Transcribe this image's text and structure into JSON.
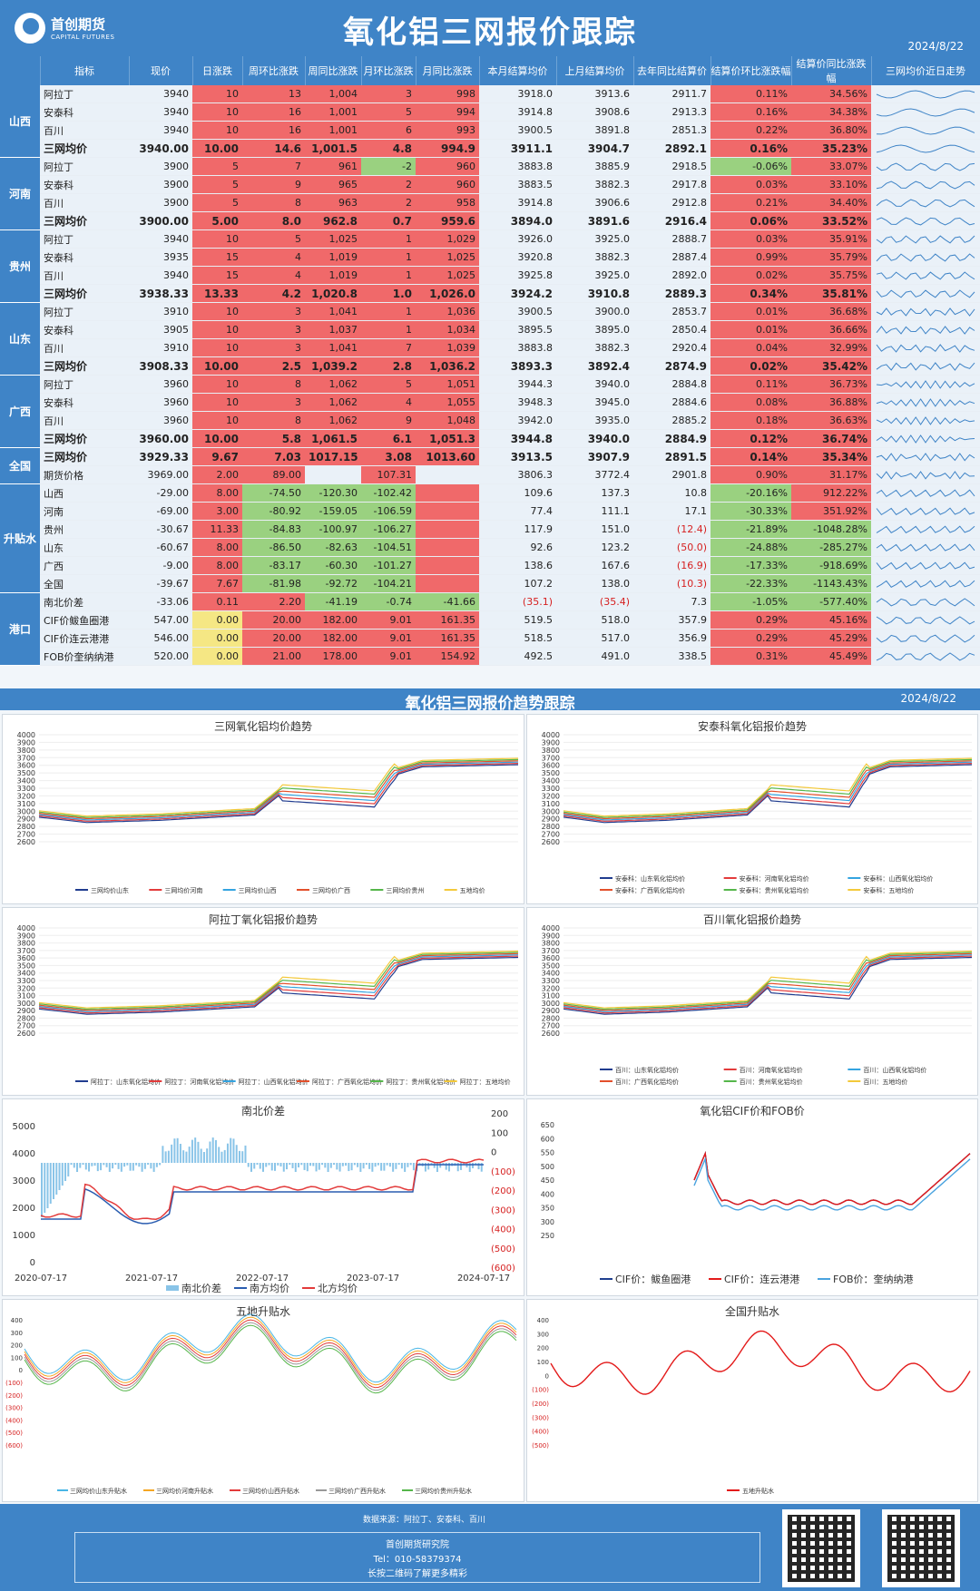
{
  "header": {
    "logo_cn": "首创期货",
    "logo_en": "CAPITAL FUTURES",
    "title": "氧化铝三网报价跟踪",
    "date": "2024/8/22"
  },
  "columns": [
    "指标",
    "现价",
    "日涨跌",
    "周环比涨跌",
    "周同比涨跌",
    "月环比涨跌",
    "月同比涨跌",
    "本月结算均价",
    "上月结算均价",
    "去年同比结算价",
    "结算价环比涨跌幅",
    "结算价同比涨跌幅",
    "三网均价近日走势"
  ],
  "groups": [
    {
      "name": "山西",
      "rows": [
        [
          "阿拉丁",
          "3940",
          "10",
          "13",
          "1,004",
          "3",
          "998",
          "3918.0",
          "3913.6",
          "2911.7",
          "0.11%",
          "34.56%"
        ],
        [
          "安泰科",
          "3940",
          "10",
          "16",
          "1,001",
          "5",
          "994",
          "3914.8",
          "3908.6",
          "2913.3",
          "0.16%",
          "34.38%"
        ],
        [
          "百川",
          "3940",
          "10",
          "16",
          "1,001",
          "6",
          "993",
          "3900.5",
          "3891.8",
          "2851.3",
          "0.22%",
          "36.80%"
        ],
        [
          "三网均价",
          "3940.00",
          "10.00",
          "14.6",
          "1,001.5",
          "4.8",
          "994.9",
          "3911.1",
          "3904.7",
          "2892.1",
          "0.16%",
          "35.23%"
        ]
      ]
    },
    {
      "name": "河南",
      "rows": [
        [
          "阿拉丁",
          "3900",
          "5",
          "7",
          "961",
          "-2",
          "960",
          "3883.8",
          "3885.9",
          "2918.5",
          "-0.06%",
          "33.07%"
        ],
        [
          "安泰科",
          "3900",
          "5",
          "9",
          "965",
          "2",
          "960",
          "3883.5",
          "3882.3",
          "2917.8",
          "0.03%",
          "33.10%"
        ],
        [
          "百川",
          "3900",
          "5",
          "8",
          "963",
          "2",
          "958",
          "3914.8",
          "3906.6",
          "2912.8",
          "0.21%",
          "34.40%"
        ],
        [
          "三网均价",
          "3900.00",
          "5.00",
          "8.0",
          "962.8",
          "0.7",
          "959.6",
          "3894.0",
          "3891.6",
          "2916.4",
          "0.06%",
          "33.52%"
        ]
      ]
    },
    {
      "name": "贵州",
      "rows": [
        [
          "阿拉丁",
          "3940",
          "10",
          "5",
          "1,025",
          "1",
          "1,029",
          "3926.0",
          "3925.0",
          "2888.7",
          "0.03%",
          "35.91%"
        ],
        [
          "安泰科",
          "3935",
          "15",
          "4",
          "1,019",
          "1",
          "1,025",
          "3920.8",
          "3882.3",
          "2887.4",
          "0.99%",
          "35.79%"
        ],
        [
          "百川",
          "3940",
          "15",
          "4",
          "1,019",
          "1",
          "1,025",
          "3925.8",
          "3925.0",
          "2892.0",
          "0.02%",
          "35.75%"
        ],
        [
          "三网均价",
          "3938.33",
          "13.33",
          "4.2",
          "1,020.8",
          "1.0",
          "1,026.0",
          "3924.2",
          "3910.8",
          "2889.3",
          "0.34%",
          "35.81%"
        ]
      ]
    },
    {
      "name": "山东",
      "rows": [
        [
          "阿拉丁",
          "3910",
          "10",
          "3",
          "1,041",
          "1",
          "1,036",
          "3900.5",
          "3900.0",
          "2853.7",
          "0.01%",
          "36.68%"
        ],
        [
          "安泰科",
          "3905",
          "10",
          "3",
          "1,037",
          "1",
          "1,034",
          "3895.5",
          "3895.0",
          "2850.4",
          "0.01%",
          "36.66%"
        ],
        [
          "百川",
          "3910",
          "10",
          "3",
          "1,041",
          "7",
          "1,039",
          "3883.8",
          "3882.3",
          "2920.4",
          "0.04%",
          "32.99%"
        ],
        [
          "三网均价",
          "3908.33",
          "10.00",
          "2.5",
          "1,039.2",
          "2.8",
          "1,036.2",
          "3893.3",
          "3892.4",
          "2874.9",
          "0.02%",
          "35.42%"
        ]
      ]
    },
    {
      "name": "广西",
      "rows": [
        [
          "阿拉丁",
          "3960",
          "10",
          "8",
          "1,062",
          "5",
          "1,051",
          "3944.3",
          "3940.0",
          "2884.8",
          "0.11%",
          "36.73%"
        ],
        [
          "安泰科",
          "3960",
          "10",
          "3",
          "1,062",
          "4",
          "1,055",
          "3948.3",
          "3945.0",
          "2884.6",
          "0.08%",
          "36.88%"
        ],
        [
          "百川",
          "3960",
          "10",
          "8",
          "1,062",
          "9",
          "1,048",
          "3942.0",
          "3935.0",
          "2885.2",
          "0.18%",
          "36.63%"
        ],
        [
          "三网均价",
          "3960.00",
          "10.00",
          "5.8",
          "1,061.5",
          "6.1",
          "1,051.3",
          "3944.8",
          "3940.0",
          "2884.9",
          "0.12%",
          "36.74%"
        ]
      ]
    },
    {
      "name": "全国",
      "rows": [
        [
          "三网均价",
          "3929.33",
          "9.67",
          "7.03",
          "1017.15",
          "3.08",
          "1013.60",
          "3913.5",
          "3907.9",
          "2891.5",
          "0.14%",
          "35.34%"
        ],
        [
          "期货价格",
          "3969.00",
          "2.00",
          "89.00",
          "",
          "107.31",
          "",
          "3806.3",
          "3772.4",
          "2901.8",
          "0.90%",
          "31.17%"
        ]
      ]
    },
    {
      "name": "升贴水",
      "rows": [
        [
          "山西",
          "-29.00",
          "8.00",
          "-74.50",
          "-120.30",
          "-102.42",
          "",
          "109.6",
          "137.3",
          "10.8",
          "-20.16%",
          "912.22%"
        ],
        [
          "河南",
          "-69.00",
          "3.00",
          "-80.92",
          "-159.05",
          "-106.59",
          "",
          "77.4",
          "111.1",
          "17.1",
          "-30.33%",
          "351.92%"
        ],
        [
          "贵州",
          "-30.67",
          "11.33",
          "-84.83",
          "-100.97",
          "-106.27",
          "",
          "117.9",
          "151.0",
          "(12.4)",
          "-21.89%",
          "-1048.28%"
        ],
        [
          "山东",
          "-60.67",
          "8.00",
          "-86.50",
          "-82.63",
          "-104.51",
          "",
          "92.6",
          "123.2",
          "(50.0)",
          "-24.88%",
          "-285.27%"
        ],
        [
          "广西",
          "-9.00",
          "8.00",
          "-83.17",
          "-60.30",
          "-101.27",
          "",
          "138.6",
          "167.6",
          "(16.9)",
          "-17.33%",
          "-918.69%"
        ],
        [
          "全国",
          "-39.67",
          "7.67",
          "-81.98",
          "-92.72",
          "-104.21",
          "",
          "107.2",
          "138.0",
          "(10.3)",
          "-22.33%",
          "-1143.43%"
        ]
      ]
    },
    {
      "name": "港口",
      "rows": [
        [
          "南北价差",
          "-33.06",
          "0.11",
          "2.20",
          "-41.19",
          "-0.74",
          "-41.66",
          "(35.1)",
          "(35.4)",
          "7.3",
          "-1.05%",
          "-577.40%"
        ],
        [
          "CIF价鲅鱼圈港",
          "547.00",
          "0.00",
          "20.00",
          "182.00",
          "9.01",
          "161.35",
          "519.5",
          "518.0",
          "357.9",
          "0.29%",
          "45.16%"
        ],
        [
          "CIF价连云港港",
          "546.00",
          "0.00",
          "20.00",
          "182.00",
          "9.01",
          "161.35",
          "518.5",
          "517.0",
          "356.9",
          "0.29%",
          "45.29%"
        ],
        [
          "FOB价奎纳纳港",
          "520.00",
          "0.00",
          "21.00",
          "178.00",
          "9.01",
          "154.92",
          "492.5",
          "491.0",
          "338.5",
          "0.31%",
          "45.49%"
        ]
      ]
    }
  ],
  "section2": {
    "title": "氧化铝三网报价趋势跟踪",
    "date": "2024/8/22"
  },
  "charts": {
    "c1": {
      "title": "三网氧化铝均价趋势",
      "yticks": [
        "4000",
        "3900",
        "3800",
        "3700",
        "3600",
        "3500",
        "3400",
        "3300",
        "3200",
        "3100",
        "3000",
        "2900",
        "2800",
        "2700",
        "2600"
      ],
      "legend": [
        "三网均价山东",
        "三网均价河南",
        "三网均价山西",
        "三网均价广西",
        "三网均价贵州",
        "五地均价"
      ]
    },
    "c2": {
      "title": "安泰科氧化铝报价趋势",
      "yticks": [
        "4000",
        "3900",
        "3800",
        "3700",
        "3600",
        "3500",
        "3400",
        "3300",
        "3200",
        "3100",
        "3000",
        "2900",
        "2800",
        "2700",
        "2600"
      ],
      "legend": [
        "安泰科：山东氧化铝均价",
        "安泰科：河南氧化铝均价",
        "安泰科：山西氧化铝均价",
        "安泰科：广西氧化铝均价",
        "安泰科：贵州氧化铝均价",
        "安泰科：五地均价"
      ]
    },
    "c3": {
      "title": "阿拉丁氧化铝报价趋势",
      "yticks": [
        "4000",
        "3900",
        "3800",
        "3700",
        "3600",
        "3500",
        "3400",
        "3300",
        "3200",
        "3100",
        "3000",
        "2900",
        "2800",
        "2700",
        "2600"
      ],
      "legend": [
        "阿拉丁：山东氧化铝均价",
        "阿拉丁：河南氧化铝均价",
        "阿拉丁：山西氧化铝均价",
        "阿拉丁：广西氧化铝均价",
        "阿拉丁：贵州氧化铝均价",
        "阿拉丁：五地均价"
      ]
    },
    "c4": {
      "title": "百川氧化铝报价趋势",
      "yticks": [
        "4000",
        "3900",
        "3800",
        "3700",
        "3600",
        "3500",
        "3400",
        "3300",
        "3200",
        "3100",
        "3000",
        "2900",
        "2800",
        "2700",
        "2600"
      ],
      "legend": [
        "百川：山东氧化铝均价",
        "百川：河南氧化铝均价",
        "百川：山西氧化铝均价",
        "百川：广西氧化铝均价",
        "百川：贵州氧化铝均价",
        "百川：五地均价"
      ]
    },
    "c5": {
      "title": "南北价差",
      "yleft": [
        "5000",
        "4000",
        "3000",
        "2000",
        "1000",
        "0"
      ],
      "yright": [
        "200",
        "100",
        "0",
        "(100)",
        "(200)",
        "(300)",
        "(400)",
        "(500)",
        "(600)"
      ],
      "xticks": [
        "2020-07-17",
        "2021-07-17",
        "2022-07-17",
        "2023-07-17",
        "2024-07-17"
      ],
      "legend": [
        "南北价差",
        "南方均价",
        "北方均价"
      ]
    },
    "c6": {
      "title": "氧化铝CIF价和FOB价",
      "yticks": [
        "650",
        "600",
        "550",
        "500",
        "450",
        "400",
        "350",
        "300",
        "250"
      ],
      "legend": [
        "CIF价：鲅鱼圈港",
        "CIF价：连云港港",
        "FOB价：奎纳纳港"
      ]
    },
    "c7": {
      "title": "五地升贴水",
      "yticks": [
        "400",
        "300",
        "200",
        "100",
        "0",
        "(100)",
        "(200)",
        "(300)",
        "(400)",
        "(500)",
        "(600)"
      ],
      "legend": [
        "三网均价山东升贴水",
        "三网均价河南升贴水",
        "三网均价山西升贴水",
        "三网均价广西升贴水",
        "三网均价贵州升贴水"
      ]
    },
    "c8": {
      "title": "全国升贴水",
      "yticks": [
        "400",
        "300",
        "200",
        "100",
        "0",
        "(100)",
        "(200)",
        "(300)",
        "(400)",
        "(500)"
      ],
      "legend": [
        "五地升贴水"
      ]
    }
  },
  "colors": {
    "accent": "#3f84c7",
    "up": "#f0696a",
    "down": "#9ad180",
    "flat": "#f5e784"
  },
  "footer": {
    "source": "数据来源：阿拉丁、安泰科、百川",
    "org": "首创期货研究院",
    "tel": "Tel：010-58379374",
    "qr_hint": "长按二维码了解更多精彩"
  }
}
